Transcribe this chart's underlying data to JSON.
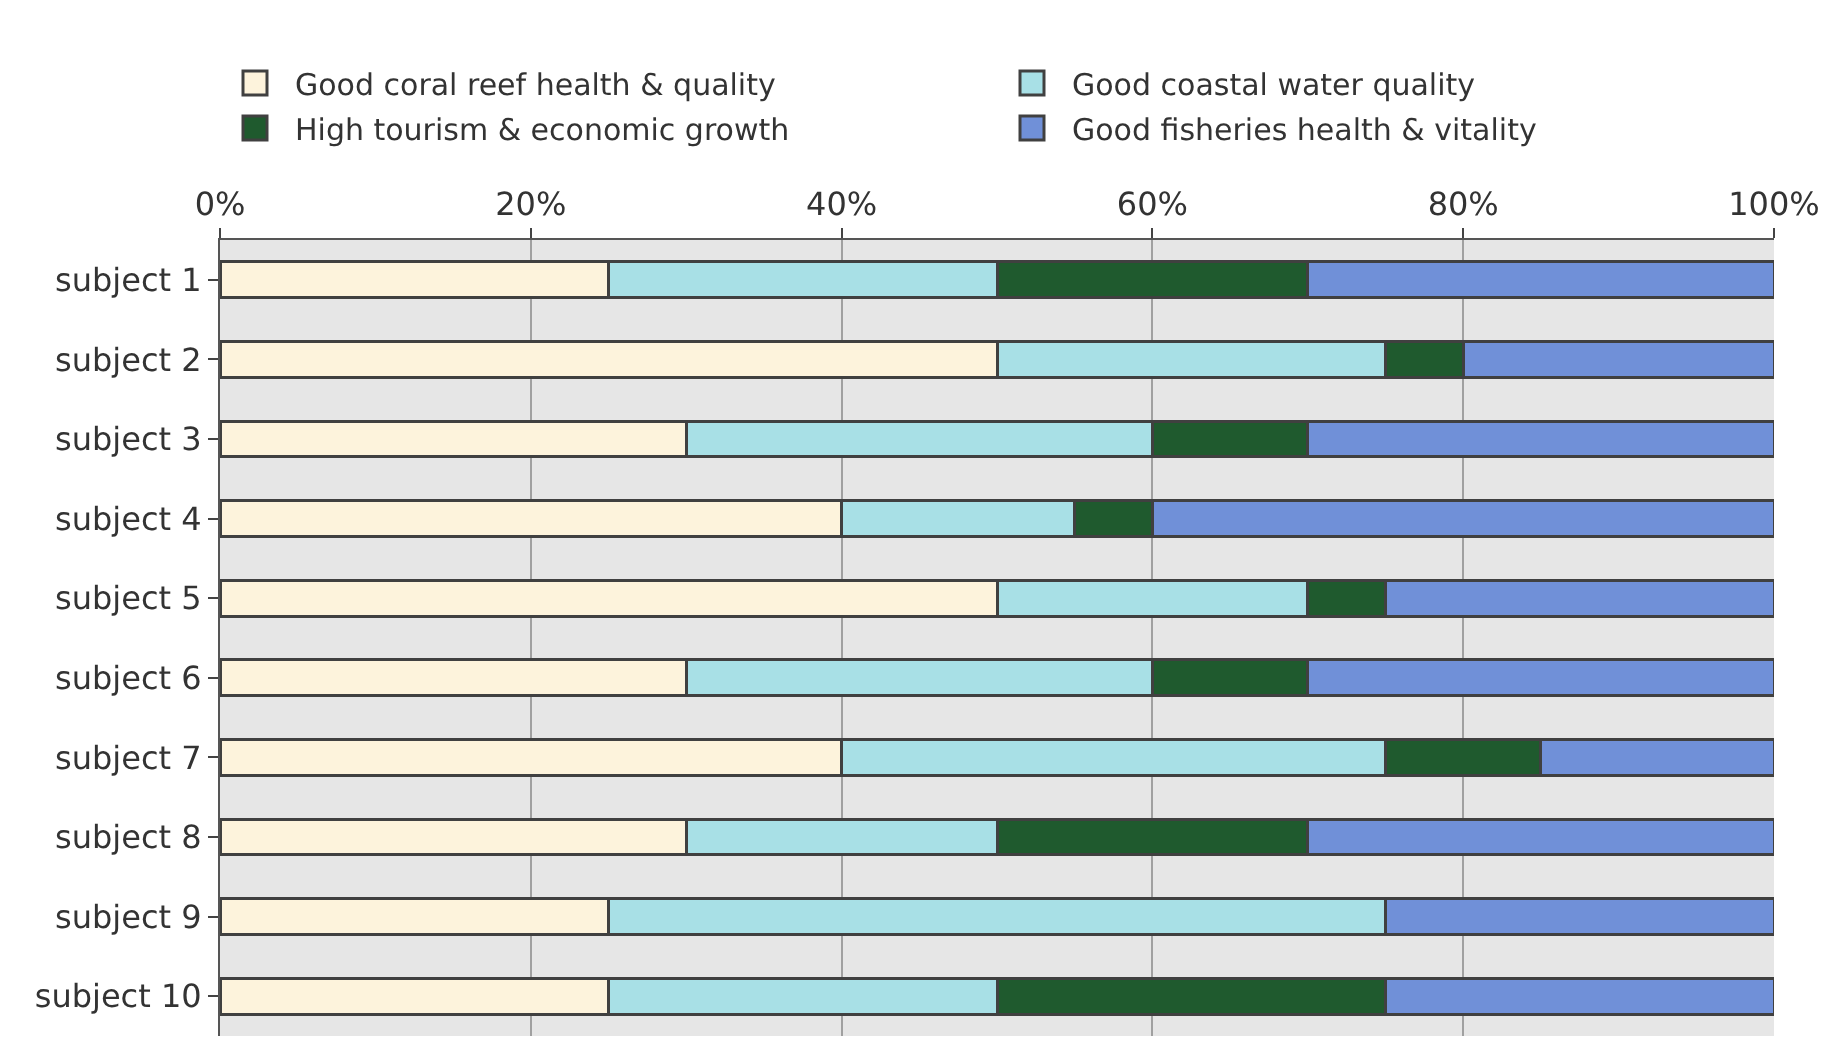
{
  "chart_data": {
    "type": "bar",
    "orientation": "horizontal",
    "stacked": true,
    "categories": [
      "subject 1",
      "subject 2",
      "subject 3",
      "subject 4",
      "subject 5",
      "subject 6",
      "subject 7",
      "subject 8",
      "subject 9",
      "subject 10"
    ],
    "series": [
      {
        "name": "Good coral reef health & quality",
        "color": "#fdf3dc",
        "values": [
          25,
          50,
          30,
          40,
          50,
          30,
          40,
          30,
          25,
          25
        ]
      },
      {
        "name": "Good coastal water quality",
        "color": "#a8e0e6",
        "values": [
          25,
          25,
          30,
          15,
          20,
          30,
          35,
          20,
          50,
          25
        ]
      },
      {
        "name": "High tourism & economic growth",
        "color": "#1f5a2e",
        "values": [
          20,
          5,
          10,
          5,
          5,
          10,
          10,
          20,
          0,
          25
        ]
      },
      {
        "name": "Good fisheries health & vitality",
        "color": "#7090d8",
        "values": [
          30,
          20,
          30,
          40,
          25,
          30,
          15,
          30,
          25,
          25
        ]
      }
    ],
    "xlim": [
      0,
      100
    ],
    "xticks": [
      {
        "value": 0,
        "label": "0%"
      },
      {
        "value": 20,
        "label": "20%"
      },
      {
        "value": 40,
        "label": "40%"
      },
      {
        "value": 60,
        "label": "60%"
      },
      {
        "value": 80,
        "label": "80%"
      },
      {
        "value": 100,
        "label": "100%"
      }
    ],
    "grid": "x",
    "legend": "top"
  }
}
